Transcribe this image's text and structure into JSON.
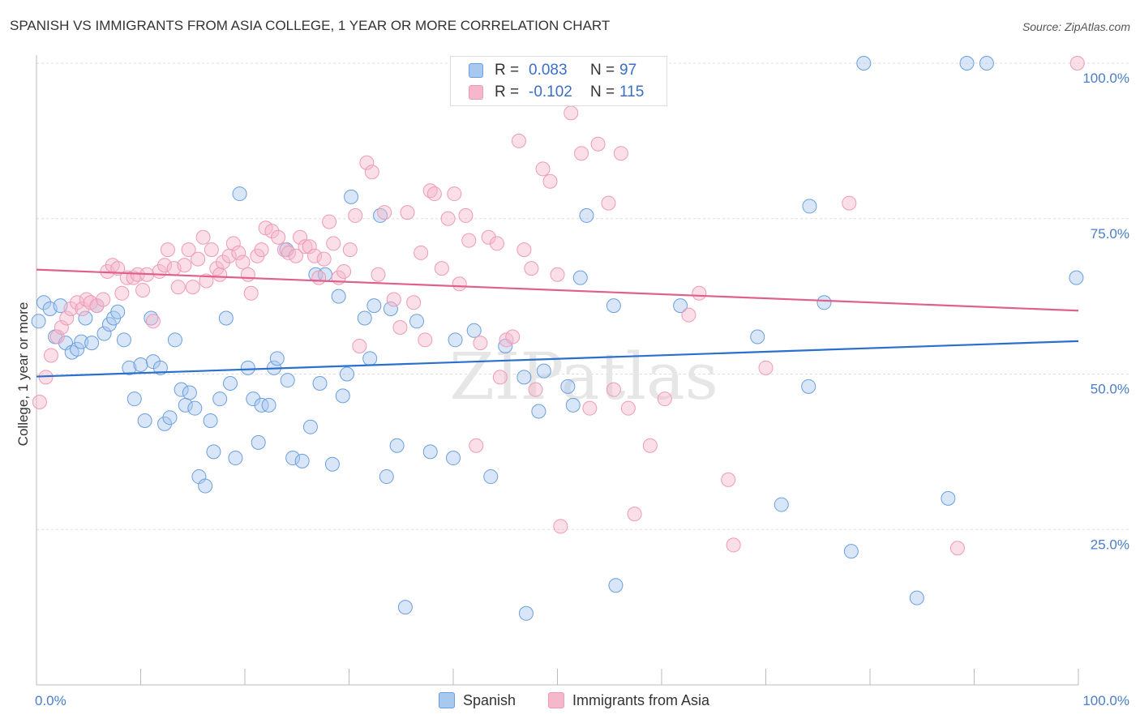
{
  "header": {
    "title": "SPANISH VS IMMIGRANTS FROM ASIA COLLEGE, 1 YEAR OR MORE CORRELATION CHART",
    "source": "Source: ZipAtlas.com"
  },
  "watermark": "ZIPatlas",
  "legend": {
    "rows": [
      {
        "r_label": "R =",
        "r_value": "0.083",
        "n_label": "N =",
        "n_value": "97",
        "color": "#a8c8f0"
      },
      {
        "r_label": "R =",
        "r_value": "-0.102",
        "n_label": "N =",
        "n_value": "115",
        "color": "#f5b8cb"
      }
    ]
  },
  "bottom_legend": {
    "items": [
      {
        "label": "Spanish",
        "color": "#a8c8f0"
      },
      {
        "label": "Immigrants from Asia",
        "color": "#f5b8cb"
      }
    ]
  },
  "chart_data": {
    "type": "scatter",
    "ylabel": "College, 1 year or more",
    "xlabel": "",
    "xlim": [
      0,
      100
    ],
    "ylim": [
      0,
      100
    ],
    "x_tick_labels": [
      "0.0%",
      "100.0%"
    ],
    "y_ticks": [
      25,
      50,
      75,
      100
    ],
    "y_tick_labels": [
      "25.0%",
      "50.0%",
      "75.0%",
      "100.0%"
    ],
    "grid": "horizontal dashed",
    "legend_placement": "top-center",
    "series": [
      {
        "name": "Spanish",
        "color": "#6a9fdf",
        "trend": {
          "x": [
            0,
            100
          ],
          "y": [
            49.6,
            55.3
          ]
        },
        "points": [
          [
            0.2,
            58.5
          ],
          [
            0.7,
            61.5
          ],
          [
            1.3,
            60.5
          ],
          [
            1.8,
            56.0
          ],
          [
            2.3,
            61.0
          ],
          [
            2.8,
            55.0
          ],
          [
            3.4,
            53.5
          ],
          [
            3.9,
            54.0
          ],
          [
            4.3,
            55.2
          ],
          [
            4.7,
            59.0
          ],
          [
            5.3,
            55.0
          ],
          [
            5.8,
            61.0
          ],
          [
            6.5,
            56.5
          ],
          [
            7.0,
            58.0
          ],
          [
            7.4,
            59.0
          ],
          [
            7.8,
            60.0
          ],
          [
            8.4,
            55.5
          ],
          [
            8.9,
            51.0
          ],
          [
            9.4,
            46.0
          ],
          [
            10.0,
            51.5
          ],
          [
            10.4,
            42.5
          ],
          [
            11.0,
            59.0
          ],
          [
            11.2,
            52.0
          ],
          [
            11.9,
            51.0
          ],
          [
            12.3,
            42.0
          ],
          [
            12.8,
            43.0
          ],
          [
            13.3,
            55.5
          ],
          [
            13.9,
            47.5
          ],
          [
            14.3,
            45.0
          ],
          [
            14.7,
            47.0
          ],
          [
            15.2,
            44.5
          ],
          [
            15.6,
            33.5
          ],
          [
            16.2,
            32.0
          ],
          [
            16.7,
            42.5
          ],
          [
            17.0,
            37.5
          ],
          [
            17.6,
            46.0
          ],
          [
            18.2,
            59.0
          ],
          [
            18.6,
            48.5
          ],
          [
            19.1,
            36.5
          ],
          [
            19.5,
            79.0
          ],
          [
            20.3,
            51.0
          ],
          [
            20.8,
            46.0
          ],
          [
            21.3,
            39.0
          ],
          [
            21.6,
            45.0
          ],
          [
            22.3,
            45.0
          ],
          [
            22.8,
            51.0
          ],
          [
            23.1,
            52.5
          ],
          [
            24.0,
            70.0
          ],
          [
            24.1,
            49.0
          ],
          [
            24.6,
            36.5
          ],
          [
            25.5,
            36.0
          ],
          [
            26.3,
            41.5
          ],
          [
            26.8,
            66.0
          ],
          [
            27.2,
            48.5
          ],
          [
            27.7,
            66.0
          ],
          [
            28.4,
            35.5
          ],
          [
            29.0,
            62.5
          ],
          [
            29.4,
            46.5
          ],
          [
            29.8,
            50.0
          ],
          [
            30.2,
            78.5
          ],
          [
            31.5,
            59.0
          ],
          [
            32.0,
            52.5
          ],
          [
            32.4,
            61.0
          ],
          [
            33.0,
            75.5
          ],
          [
            33.6,
            33.5
          ],
          [
            34.0,
            60.5
          ],
          [
            34.6,
            38.5
          ],
          [
            35.4,
            12.5
          ],
          [
            36.5,
            58.5
          ],
          [
            37.8,
            37.5
          ],
          [
            40.0,
            36.5
          ],
          [
            40.2,
            55.5
          ],
          [
            42.0,
            57.0
          ],
          [
            43.6,
            33.5
          ],
          [
            45.0,
            54.5
          ],
          [
            46.8,
            49.5
          ],
          [
            47.0,
            11.5
          ],
          [
            48.2,
            44.0
          ],
          [
            48.7,
            50.5
          ],
          [
            51.0,
            48.0
          ],
          [
            51.5,
            45.0
          ],
          [
            52.2,
            65.5
          ],
          [
            52.8,
            75.5
          ],
          [
            55.4,
            61.0
          ],
          [
            55.6,
            16.0
          ],
          [
            61.8,
            61.0
          ],
          [
            69.2,
            56.0
          ],
          [
            71.5,
            29.0
          ],
          [
            74.1,
            48.0
          ],
          [
            74.2,
            77.0
          ],
          [
            75.6,
            61.5
          ],
          [
            78.2,
            21.5
          ],
          [
            79.4,
            100
          ],
          [
            84.5,
            14.0
          ],
          [
            87.5,
            30.0
          ],
          [
            89.3,
            100
          ],
          [
            91.2,
            100
          ],
          [
            99.8,
            65.5
          ]
        ]
      },
      {
        "name": "Immigrants from Asia",
        "color": "#ef9ab5",
        "trend": {
          "x": [
            0,
            100
          ],
          "y": [
            66.8,
            60.2
          ]
        },
        "points": [
          [
            0.3,
            45.5
          ],
          [
            0.9,
            49.5
          ],
          [
            1.4,
            53.0
          ],
          [
            2.0,
            56.0
          ],
          [
            2.4,
            57.5
          ],
          [
            2.9,
            59.0
          ],
          [
            3.3,
            60.5
          ],
          [
            3.9,
            61.5
          ],
          [
            4.4,
            60.5
          ],
          [
            4.8,
            62.0
          ],
          [
            5.2,
            61.5
          ],
          [
            5.8,
            61.0
          ],
          [
            6.4,
            62.0
          ],
          [
            6.8,
            66.5
          ],
          [
            7.3,
            67.5
          ],
          [
            7.8,
            67.0
          ],
          [
            8.2,
            63.0
          ],
          [
            8.7,
            65.5
          ],
          [
            9.3,
            65.5
          ],
          [
            9.7,
            66.0
          ],
          [
            10.2,
            63.5
          ],
          [
            10.6,
            66.0
          ],
          [
            11.2,
            58.5
          ],
          [
            11.8,
            66.5
          ],
          [
            12.3,
            67.5
          ],
          [
            12.6,
            70.0
          ],
          [
            13.2,
            67.0
          ],
          [
            13.6,
            64.0
          ],
          [
            14.2,
            67.5
          ],
          [
            14.6,
            70.0
          ],
          [
            15.0,
            64.0
          ],
          [
            15.5,
            68.5
          ],
          [
            16.0,
            72.0
          ],
          [
            16.3,
            65.0
          ],
          [
            16.8,
            70.0
          ],
          [
            17.3,
            67.0
          ],
          [
            17.6,
            66.0
          ],
          [
            17.9,
            68.0
          ],
          [
            18.5,
            69.0
          ],
          [
            18.9,
            71.0
          ],
          [
            19.4,
            69.5
          ],
          [
            19.8,
            68.0
          ],
          [
            20.3,
            66.0
          ],
          [
            20.6,
            63.0
          ],
          [
            21.2,
            69.0
          ],
          [
            21.6,
            70.0
          ],
          [
            22.0,
            73.5
          ],
          [
            22.6,
            73.0
          ],
          [
            23.2,
            72.0
          ],
          [
            23.8,
            70.0
          ],
          [
            24.2,
            69.5
          ],
          [
            24.9,
            69.0
          ],
          [
            25.3,
            72.0
          ],
          [
            25.8,
            70.5
          ],
          [
            26.2,
            70.5
          ],
          [
            26.7,
            69.0
          ],
          [
            27.1,
            65.5
          ],
          [
            27.6,
            68.5
          ],
          [
            28.1,
            74.5
          ],
          [
            28.5,
            71.0
          ],
          [
            29.0,
            65.5
          ],
          [
            29.5,
            66.5
          ],
          [
            30.1,
            70.0
          ],
          [
            30.6,
            75.5
          ],
          [
            31.0,
            54.5
          ],
          [
            31.7,
            84.0
          ],
          [
            32.2,
            82.5
          ],
          [
            32.8,
            66.0
          ],
          [
            33.4,
            76.0
          ],
          [
            34.3,
            62.0
          ],
          [
            34.9,
            57.5
          ],
          [
            35.6,
            76.0
          ],
          [
            36.2,
            61.5
          ],
          [
            36.9,
            69.5
          ],
          [
            37.3,
            55.5
          ],
          [
            37.8,
            79.5
          ],
          [
            38.2,
            79.0
          ],
          [
            38.9,
            67.0
          ],
          [
            39.5,
            75.0
          ],
          [
            40.1,
            79.0
          ],
          [
            40.6,
            64.5
          ],
          [
            41.2,
            75.5
          ],
          [
            41.5,
            71.5
          ],
          [
            42.2,
            38.5
          ],
          [
            42.6,
            55.0
          ],
          [
            43.4,
            72.0
          ],
          [
            44.2,
            71.0
          ],
          [
            44.5,
            49.5
          ],
          [
            45.1,
            55.5
          ],
          [
            45.7,
            56.0
          ],
          [
            46.3,
            87.5
          ],
          [
            46.8,
            70.0
          ],
          [
            47.5,
            67.0
          ],
          [
            47.9,
            47.5
          ],
          [
            48.6,
            83.0
          ],
          [
            49.3,
            81.0
          ],
          [
            50.0,
            66.0
          ],
          [
            50.3,
            25.5
          ],
          [
            51.3,
            92.0
          ],
          [
            52.3,
            85.5
          ],
          [
            53.1,
            44.5
          ],
          [
            53.9,
            87.0
          ],
          [
            54.9,
            77.5
          ],
          [
            55.4,
            47.5
          ],
          [
            56.1,
            85.5
          ],
          [
            56.8,
            44.5
          ],
          [
            57.4,
            27.5
          ],
          [
            58.9,
            38.5
          ],
          [
            60.3,
            46.0
          ],
          [
            62.6,
            59.5
          ],
          [
            63.6,
            63.0
          ],
          [
            66.4,
            33.0
          ],
          [
            66.9,
            22.5
          ],
          [
            70.0,
            51.0
          ],
          [
            78.0,
            77.5
          ],
          [
            88.4,
            22.0
          ],
          [
            99.9,
            100
          ]
        ]
      }
    ]
  }
}
